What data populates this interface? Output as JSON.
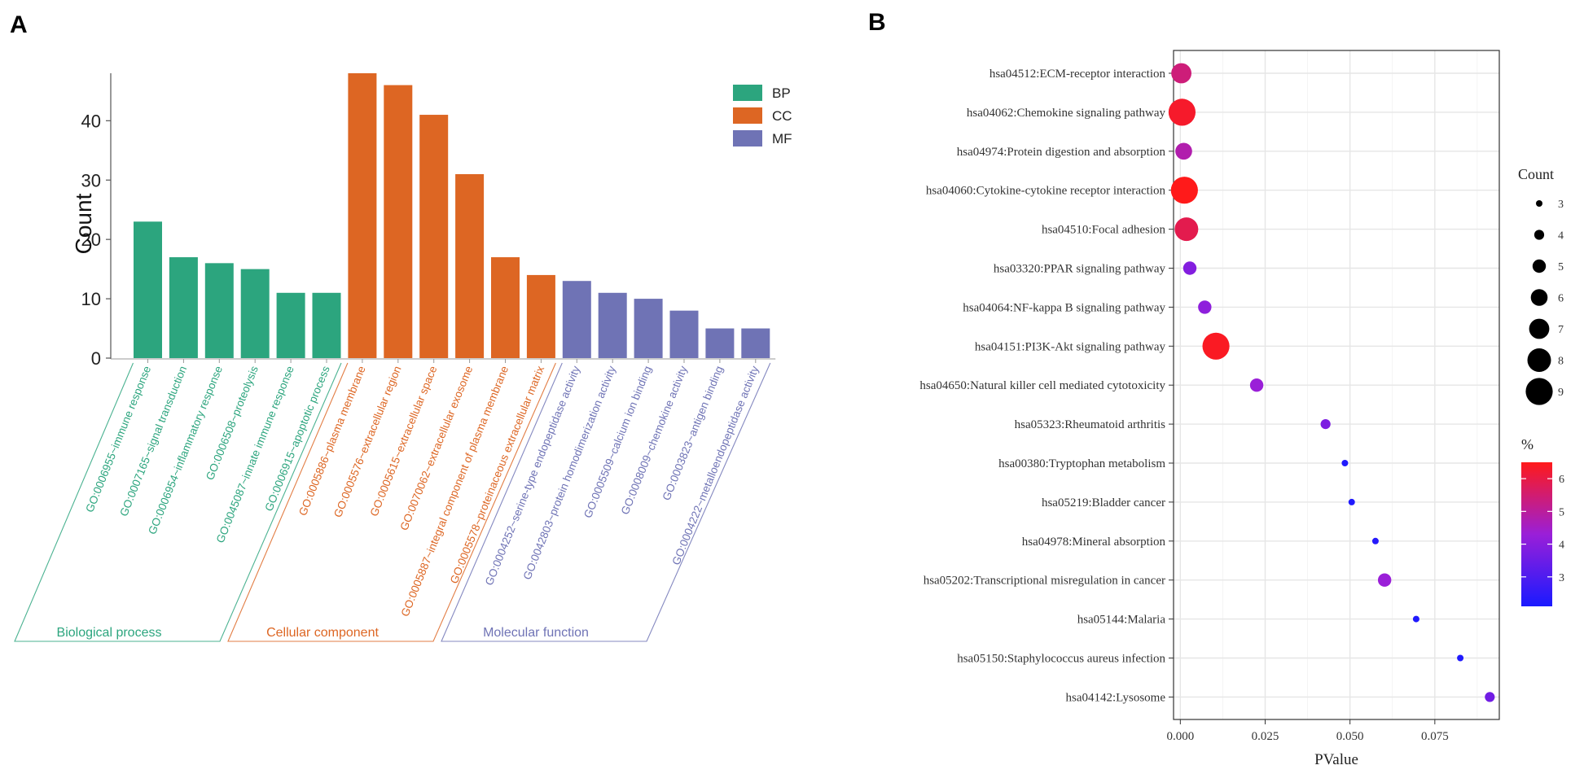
{
  "colors": {
    "BP": "#2ca57e",
    "CC": "#dd6623",
    "MF": "#6f73b5",
    "grad_low": "#1a1aff",
    "grad_mid": "#9a1fd8",
    "grad_high": "#ff1a1a"
  },
  "chart_data": [
    {
      "panel": "A",
      "type": "bar",
      "ylabel": "Count",
      "xlabel": "",
      "ylim": [
        0,
        48
      ],
      "yticks": [
        0,
        10,
        20,
        30,
        40
      ],
      "legend": [
        "BP",
        "CC",
        "MF"
      ],
      "legend_position": "top-right",
      "groups": [
        {
          "key": "BP",
          "label": "Biological process"
        },
        {
          "key": "CC",
          "label": "Cellular component"
        },
        {
          "key": "MF",
          "label": "Molecular function"
        }
      ],
      "bars": [
        {
          "term": "GO:0006955~immune response",
          "value": 23,
          "group": "BP"
        },
        {
          "term": "GO:0007165~signal transduction",
          "value": 17,
          "group": "BP"
        },
        {
          "term": "GO:0006954~inflammatory response",
          "value": 16,
          "group": "BP"
        },
        {
          "term": "GO:0006508~proteolysis",
          "value": 15,
          "group": "BP"
        },
        {
          "term": "GO:0045087~innate immune response",
          "value": 11,
          "group": "BP"
        },
        {
          "term": "GO:0006915~apoptotic process",
          "value": 11,
          "group": "BP"
        },
        {
          "term": "GO:0005886~plasma membrane",
          "value": 48,
          "group": "CC"
        },
        {
          "term": "GO:0005576~extracellular region",
          "value": 46,
          "group": "CC"
        },
        {
          "term": "GO:0005615~extracellular space",
          "value": 41,
          "group": "CC"
        },
        {
          "term": "GO:0070062~extracellular exosome",
          "value": 31,
          "group": "CC"
        },
        {
          "term": "GO:0005887~integral component of plasma membrane",
          "value": 17,
          "group": "CC"
        },
        {
          "term": "GO:0005578~proteinaceous extracellular matrix",
          "value": 14,
          "group": "CC"
        },
        {
          "term": "GO:0004252~serine-type endopeptidase activity",
          "value": 13,
          "group": "MF"
        },
        {
          "term": "GO:0042803~protein homodimerization activity",
          "value": 11,
          "group": "MF"
        },
        {
          "term": "GO:0005509~calcium ion binding",
          "value": 10,
          "group": "MF"
        },
        {
          "term": "GO:0008009~chemokine activity",
          "value": 8,
          "group": "MF"
        },
        {
          "term": "GO:0003823~antigen binding",
          "value": 5,
          "group": "MF"
        },
        {
          "term": "GO:0004222~metalloendopeptidase activity",
          "value": 5,
          "group": "MF"
        }
      ]
    },
    {
      "panel": "B",
      "type": "scatter",
      "xlabel": "PValue",
      "ylabel": "",
      "xlim": [
        -0.002,
        0.094
      ],
      "xticks": [
        0.0,
        0.025,
        0.05,
        0.075
      ],
      "xtick_labels": [
        "0.000",
        "0.025",
        "0.050",
        "0.075"
      ],
      "grid": true,
      "size_legend_title": "Count",
      "size_legend": [
        3,
        4,
        5,
        6,
        7,
        8,
        9
      ],
      "color_legend_title": "%",
      "color_ticks": [
        3,
        4,
        5,
        6
      ],
      "color_range": [
        2.1,
        6.5
      ],
      "points": [
        {
          "term": "hsa04512:ECM-receptor interaction",
          "pvalue": 0.0003,
          "count": 7,
          "percent": 5.4
        },
        {
          "term": "hsa04062:Chemokine signaling pathway",
          "pvalue": 0.0005,
          "count": 9,
          "percent": 6.3
        },
        {
          "term": "hsa04974:Protein digestion and absorption",
          "pvalue": 0.001,
          "count": 6,
          "percent": 4.8
        },
        {
          "term": "hsa04060:Cytokine-cytokine receptor interaction",
          "pvalue": 0.0012,
          "count": 9,
          "percent": 6.5
        },
        {
          "term": "hsa04510:Focal adhesion",
          "pvalue": 0.0018,
          "count": 8,
          "percent": 5.9
        },
        {
          "term": "hsa03320:PPAR signaling pathway",
          "pvalue": 0.0028,
          "count": 5,
          "percent": 3.9
        },
        {
          "term": "hsa04064:NF-kappa B signaling pathway",
          "pvalue": 0.0072,
          "count": 5,
          "percent": 4.1
        },
        {
          "term": "hsa04151:PI3K-Akt signaling pathway",
          "pvalue": 0.0105,
          "count": 9,
          "percent": 6.4
        },
        {
          "term": "hsa04650:Natural killer cell mediated cytotoxicity",
          "pvalue": 0.0225,
          "count": 5,
          "percent": 4.3
        },
        {
          "term": "hsa05323:Rheumatoid arthritis",
          "pvalue": 0.0428,
          "count": 4,
          "percent": 3.8
        },
        {
          "term": "hsa00380:Tryptophan metabolism",
          "pvalue": 0.0485,
          "count": 3,
          "percent": 2.2
        },
        {
          "term": "hsa05219:Bladder cancer",
          "pvalue": 0.0505,
          "count": 3,
          "percent": 2.2
        },
        {
          "term": "hsa04978:Mineral absorption",
          "pvalue": 0.0575,
          "count": 3,
          "percent": 2.3
        },
        {
          "term": "hsa05202:Transcriptional misregulation in cancer",
          "pvalue": 0.0602,
          "count": 5,
          "percent": 4.3
        },
        {
          "term": "hsa05144:Malaria",
          "pvalue": 0.0695,
          "count": 3,
          "percent": 2.2
        },
        {
          "term": "hsa05150:Staphylococcus aureus infection",
          "pvalue": 0.0825,
          "count": 3,
          "percent": 2.2
        },
        {
          "term": "hsa04142:Lysosome",
          "pvalue": 0.0912,
          "count": 4,
          "percent": 3.6
        }
      ]
    }
  ],
  "labels": {
    "panel_a": "A",
    "panel_b": "B"
  }
}
